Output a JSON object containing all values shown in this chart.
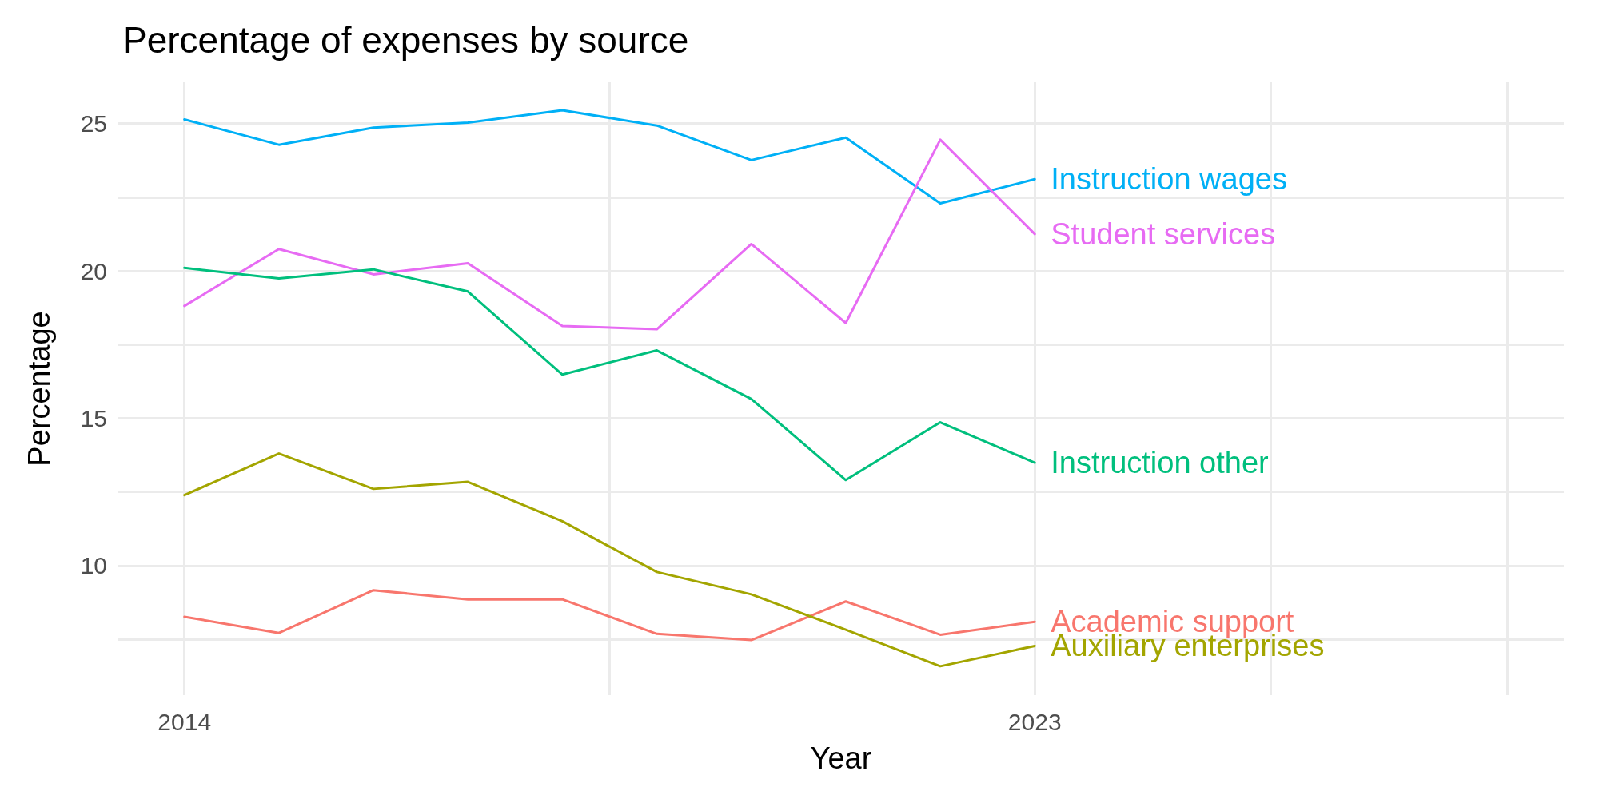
{
  "chart_data": {
    "type": "line",
    "title": "Percentage of expenses by source",
    "xlabel": "Year",
    "ylabel": "Percentage",
    "x": [
      2014,
      2015,
      2016,
      2017,
      2018,
      2019,
      2020,
      2021,
      2022,
      2023
    ],
    "series": [
      {
        "name": "Instruction wages",
        "color": "#00b0f6",
        "values": [
          25.14,
          24.28,
          24.86,
          25.03,
          25.45,
          24.93,
          23.76,
          24.52,
          22.29,
          23.11
        ]
      },
      {
        "name": "Student services",
        "color": "#e76bf3",
        "values": [
          18.81,
          20.74,
          19.88,
          20.26,
          18.13,
          18.02,
          20.91,
          18.23,
          24.45,
          21.25
        ]
      },
      {
        "name": "Instruction other",
        "color": "#00bf7d",
        "values": [
          20.1,
          19.74,
          20.05,
          19.3,
          16.48,
          17.3,
          15.65,
          12.9,
          14.86,
          13.49
        ]
      },
      {
        "name": "Academic support",
        "color": "#f8766d",
        "values": [
          8.26,
          7.71,
          9.16,
          8.85,
          8.85,
          7.68,
          7.47,
          8.78,
          7.65,
          8.09
        ]
      },
      {
        "name": "Auxiliary enterprises",
        "color": "#a3a500",
        "values": [
          12.39,
          13.8,
          12.6,
          12.84,
          11.5,
          9.78,
          9.02,
          7.82,
          6.58,
          7.27
        ]
      }
    ],
    "xlim": [
      2013.3,
      2028.6
    ],
    "xticks": [
      2014,
      {
        "value": 2018.5,
        "label": null
      },
      2023,
      {
        "value": 2025.5,
        "label": null
      },
      {
        "value": 2028,
        "label": null
      }
    ],
    "ylim": [
      5.6,
      26.4
    ],
    "yticks": [
      {
        "value": 7.5,
        "label": null
      },
      10,
      {
        "value": 12.5,
        "label": null
      },
      15,
      {
        "value": 17.5,
        "label": null
      },
      20,
      {
        "value": 22.5,
        "label": null
      },
      25
    ],
    "grid": true,
    "legend": false,
    "marker": "none",
    "line_style": "solid"
  }
}
